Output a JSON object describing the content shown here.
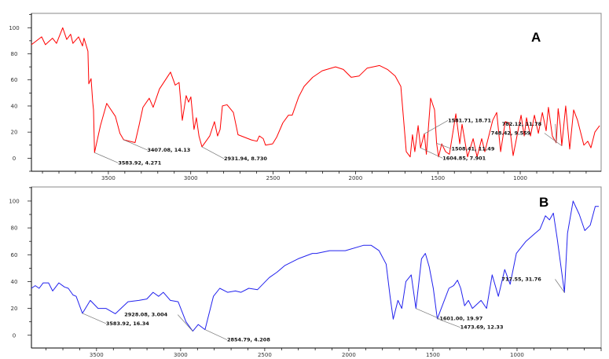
{
  "chart_data": [
    {
      "type": "line",
      "panel_label": "A",
      "color": "#ff0000",
      "xlim": [
        3967,
        509
      ],
      "ylim": [
        -10,
        111
      ],
      "x_ticks": [
        3500,
        3000,
        2500,
        2000,
        1500,
        1000
      ],
      "y_ticks": [
        0,
        20,
        40,
        60,
        80,
        100
      ],
      "grid": false,
      "xlabel": "",
      "ylabel": "",
      "points": [
        [
          3967,
          87
        ],
        [
          3905,
          93
        ],
        [
          3882,
          87
        ],
        [
          3839,
          92
        ],
        [
          3815,
          88
        ],
        [
          3777,
          100
        ],
        [
          3753,
          91
        ],
        [
          3729,
          95
        ],
        [
          3715,
          88
        ],
        [
          3681,
          93
        ],
        [
          3657,
          86
        ],
        [
          3648,
          92
        ],
        [
          3624,
          82
        ],
        [
          3619,
          57
        ],
        [
          3605,
          61
        ],
        [
          3595,
          43
        ],
        [
          3590,
          37
        ],
        [
          3584,
          4.3
        ],
        [
          3548,
          25
        ],
        [
          3510,
          42
        ],
        [
          3457,
          32
        ],
        [
          3430,
          19
        ],
        [
          3407,
          14.1
        ],
        [
          3338,
          12
        ],
        [
          3314,
          25
        ],
        [
          3290,
          39
        ],
        [
          3252,
          46
        ],
        [
          3228,
          39
        ],
        [
          3190,
          53
        ],
        [
          3123,
          66
        ],
        [
          3094,
          56
        ],
        [
          3071,
          58
        ],
        [
          3051,
          29
        ],
        [
          3028,
          48
        ],
        [
          3013,
          43
        ],
        [
          2999,
          47
        ],
        [
          2980,
          22
        ],
        [
          2966,
          31
        ],
        [
          2950,
          17
        ],
        [
          2932,
          8.7
        ],
        [
          2885,
          17
        ],
        [
          2856,
          28
        ],
        [
          2837,
          17
        ],
        [
          2822,
          22
        ],
        [
          2808,
          40
        ],
        [
          2780,
          41
        ],
        [
          2741,
          35
        ],
        [
          2713,
          18
        ],
        [
          2632,
          14
        ],
        [
          2598,
          13
        ],
        [
          2584,
          17
        ],
        [
          2560,
          15
        ],
        [
          2546,
          10
        ],
        [
          2503,
          11
        ],
        [
          2479,
          16
        ],
        [
          2441,
          27
        ],
        [
          2407,
          33
        ],
        [
          2384,
          33
        ],
        [
          2345,
          47
        ],
        [
          2312,
          55
        ],
        [
          2260,
          62
        ],
        [
          2202,
          67
        ],
        [
          2121,
          70
        ],
        [
          2074,
          68
        ],
        [
          2026,
          62
        ],
        [
          1978,
          63
        ],
        [
          1930,
          69
        ],
        [
          1854,
          71
        ],
        [
          1806,
          68
        ],
        [
          1759,
          63
        ],
        [
          1725,
          55
        ],
        [
          1692,
          5
        ],
        [
          1668,
          1
        ],
        [
          1654,
          18
        ],
        [
          1640,
          5
        ],
        [
          1620,
          25
        ],
        [
          1605,
          7.9
        ],
        [
          1582,
          18.7
        ],
        [
          1570,
          3
        ],
        [
          1544,
          46
        ],
        [
          1520,
          37
        ],
        [
          1508,
          11.5
        ],
        [
          1496,
          1
        ],
        [
          1477,
          11
        ],
        [
          1453,
          5
        ],
        [
          1430,
          3
        ],
        [
          1391,
          34
        ],
        [
          1367,
          11
        ],
        [
          1353,
          26
        ],
        [
          1320,
          1
        ],
        [
          1286,
          15
        ],
        [
          1262,
          1
        ],
        [
          1234,
          15
        ],
        [
          1215,
          5
        ],
        [
          1167,
          29
        ],
        [
          1143,
          35
        ],
        [
          1119,
          5
        ],
        [
          1091,
          28
        ],
        [
          1067,
          27
        ],
        [
          1043,
          2
        ],
        [
          995,
          33
        ],
        [
          976,
          17
        ],
        [
          962,
          31
        ],
        [
          938,
          17
        ],
        [
          914,
          33
        ],
        [
          890,
          19
        ],
        [
          866,
          35
        ],
        [
          843,
          21
        ],
        [
          829,
          39
        ],
        [
          805,
          17
        ],
        [
          782,
          11.8
        ],
        [
          770,
          38
        ],
        [
          757,
          25
        ],
        [
          748,
          9.6
        ],
        [
          724,
          40
        ],
        [
          700,
          7
        ],
        [
          676,
          37
        ],
        [
          652,
          29
        ],
        [
          614,
          10
        ],
        [
          590,
          13
        ],
        [
          571,
          8
        ],
        [
          547,
          20
        ],
        [
          518,
          25
        ]
      ],
      "annotations": [
        {
          "x": 3583.92,
          "y": 4.271,
          "text": "3583.92, 4.271"
        },
        {
          "x": 3407.08,
          "y": 14.13,
          "text": "3407.08, 14.13"
        },
        {
          "x": 2931.94,
          "y": 8.73,
          "text": "2931.94, 8.730"
        },
        {
          "x": 1581.71,
          "y": 18.71,
          "text": "1581.71, 18.71"
        },
        {
          "x": 1604.85,
          "y": 7.901,
          "text": "1604.85, 7.901"
        },
        {
          "x": 1508.41,
          "y": 11.49,
          "text": "1508.41, 11.49"
        },
        {
          "x": 782.12,
          "y": 11.78,
          "text": "782.12, 11.78"
        },
        {
          "x": 748.42,
          "y": 9.559,
          "text": "748.42, 9.559"
        }
      ]
    },
    {
      "type": "line",
      "panel_label": "B",
      "color": "#2222ee",
      "xlim": [
        3887,
        500
      ],
      "ylim": [
        -9.5,
        110.5
      ],
      "x_ticks": [
        3500,
        3000,
        2500,
        2000,
        1500,
        1000
      ],
      "y_ticks": [
        0,
        20,
        40,
        60,
        80,
        100
      ],
      "grid": false,
      "xlabel": "",
      "ylabel": "",
      "points": [
        [
          3887,
          35
        ],
        [
          3864,
          37
        ],
        [
          3841,
          35
        ],
        [
          3817,
          39
        ],
        [
          3785,
          39
        ],
        [
          3761,
          33
        ],
        [
          3724,
          39
        ],
        [
          3691,
          36
        ],
        [
          3668,
          35
        ],
        [
          3640,
          30
        ],
        [
          3621,
          29
        ],
        [
          3584,
          16.3
        ],
        [
          3537,
          26
        ],
        [
          3491,
          20
        ],
        [
          3444,
          20
        ],
        [
          3388,
          16
        ],
        [
          3313,
          25
        ],
        [
          3248,
          26
        ],
        [
          3201,
          27
        ],
        [
          3164,
          32
        ],
        [
          3131,
          29
        ],
        [
          3103,
          32
        ],
        [
          3061,
          26
        ],
        [
          3015,
          25
        ],
        [
          2968,
          10
        ],
        [
          2928,
          3.0
        ],
        [
          2895,
          8
        ],
        [
          2855,
          4.2
        ],
        [
          2805,
          29
        ],
        [
          2767,
          35
        ],
        [
          2721,
          32
        ],
        [
          2674,
          33
        ],
        [
          2641,
          32
        ],
        [
          2595,
          35
        ],
        [
          2543,
          34
        ],
        [
          2473,
          43
        ],
        [
          2427,
          47
        ],
        [
          2380,
          52
        ],
        [
          2301,
          57
        ],
        [
          2217,
          61
        ],
        [
          2193,
          61
        ],
        [
          2114,
          63
        ],
        [
          2021,
          63
        ],
        [
          1913,
          67
        ],
        [
          1867,
          67
        ],
        [
          1820,
          63
        ],
        [
          1778,
          53
        ],
        [
          1755,
          29
        ],
        [
          1736,
          12
        ],
        [
          1708,
          26
        ],
        [
          1685,
          20
        ],
        [
          1661,
          40
        ],
        [
          1629,
          45
        ],
        [
          1601,
          20
        ],
        [
          1568,
          57
        ],
        [
          1545,
          61
        ],
        [
          1522,
          51
        ],
        [
          1498,
          35
        ],
        [
          1474,
          12.3
        ],
        [
          1405,
          35
        ],
        [
          1377,
          37
        ],
        [
          1354,
          41
        ],
        [
          1335,
          35
        ],
        [
          1312,
          22
        ],
        [
          1289,
          26
        ],
        [
          1265,
          20
        ],
        [
          1214,
          26
        ],
        [
          1181,
          20
        ],
        [
          1148,
          45
        ],
        [
          1111,
          29
        ],
        [
          1073,
          49
        ],
        [
          1041,
          38
        ],
        [
          1004,
          61
        ],
        [
          947,
          70
        ],
        [
          892,
          76
        ],
        [
          864,
          79
        ],
        [
          831,
          89
        ],
        [
          807,
          86
        ],
        [
          784,
          91
        ],
        [
          761,
          72
        ],
        [
          718,
          31.8
        ],
        [
          700,
          76
        ],
        [
          667,
          100
        ],
        [
          630,
          90
        ],
        [
          597,
          78
        ],
        [
          565,
          82
        ],
        [
          535,
          96
        ],
        [
          514,
          96
        ]
      ],
      "annotations": [
        {
          "x": 3583.92,
          "y": 16.34,
          "text": "3583.92, 16.34"
        },
        {
          "x": 2928.08,
          "y": 3.004,
          "text": "2928.08, 3.004"
        },
        {
          "x": 2854.79,
          "y": 4.208,
          "text": "2854.79, 4.208"
        },
        {
          "x": 1601.0,
          "y": 19.97,
          "text": "1601.00, 19.97"
        },
        {
          "x": 1473.69,
          "y": 12.33,
          "text": "1473.69, 12.33"
        },
        {
          "x": 717.55,
          "y": 31.76,
          "text": "717.55, 31.76"
        }
      ]
    }
  ]
}
